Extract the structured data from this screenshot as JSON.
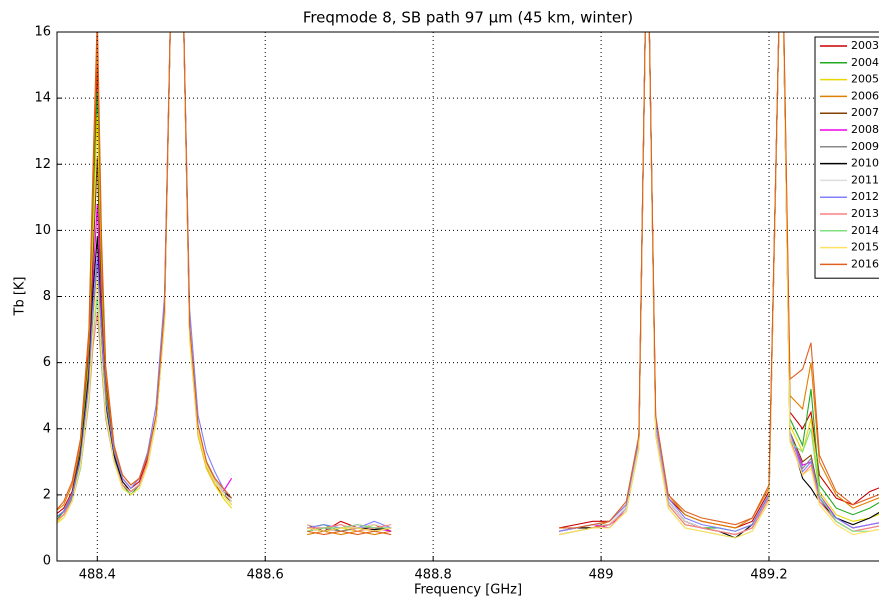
{
  "chart_data": {
    "type": "line",
    "title": "Freqmode 8, SB path 97 μm (45 km, winter)",
    "x_label": "Frequency [GHz]",
    "y_label": "Tb [K]",
    "xlim": [
      488.352,
      489.331
    ],
    "xticks": [
      488.4,
      488.6,
      488.8,
      489.0,
      489.2
    ],
    "ylim": [
      0,
      16
    ],
    "yticks": [
      0,
      2,
      4,
      6,
      8,
      10,
      12,
      14,
      16
    ],
    "grid": true,
    "legend": "upper right",
    "x": [
      488.35,
      488.36,
      488.37,
      488.38,
      488.39,
      488.395,
      488.4,
      488.405,
      488.41,
      488.42,
      488.43,
      488.44,
      488.45,
      488.46,
      488.47,
      488.48,
      488.49,
      488.5,
      488.51,
      488.52,
      488.53,
      488.54,
      488.55,
      488.56,
      488.6,
      488.65,
      488.67,
      488.69,
      488.71,
      488.73,
      488.75,
      488.85,
      488.95,
      488.97,
      488.99,
      489.01,
      489.03,
      489.045,
      489.055,
      489.065,
      489.08,
      489.1,
      489.12,
      489.14,
      489.16,
      489.18,
      489.2,
      489.215,
      489.225,
      489.24,
      489.25,
      489.26,
      489.28,
      489.3,
      489.32,
      489.34
    ],
    "series": [
      {
        "name": "2003",
        "color": "#cc0000",
        "values": [
          1.4,
          1.6,
          2.1,
          3.4,
          6.5,
          11,
          15,
          9,
          5.5,
          3.3,
          2.5,
          2.2,
          2.4,
          3.1,
          4.2,
          7.3,
          20,
          20,
          6.8,
          3.8,
          2.8,
          2.3,
          2.0,
          1.8,
          null,
          1.1,
          0.9,
          1.2,
          1.0,
          1.1,
          0.9,
          null,
          1.0,
          1.1,
          1.2,
          1.2,
          1.7,
          3.6,
          20,
          4.2,
          1.9,
          1.4,
          1.2,
          1.1,
          1.0,
          1.2,
          2.1,
          20,
          4.5,
          4.0,
          4.5,
          2.6,
          1.9,
          1.7,
          2.1,
          2.3
        ]
      },
      {
        "name": "2004",
        "color": "#22aa22",
        "values": [
          1.2,
          1.5,
          2.0,
          3.3,
          6.2,
          10.5,
          14.2,
          8.5,
          5.2,
          3.1,
          2.3,
          2.0,
          2.3,
          3.0,
          4.3,
          7.4,
          20,
          20,
          6.9,
          3.9,
          2.9,
          2.4,
          2.0,
          1.7,
          null,
          1.0,
          1.1,
          0.9,
          1.0,
          1.0,
          0.9,
          null,
          0.9,
          1.0,
          1.1,
          1.1,
          1.6,
          3.5,
          20,
          4.0,
          1.8,
          1.2,
          1.0,
          1.0,
          0.9,
          1.1,
          2.0,
          20,
          4.3,
          3.5,
          5.2,
          2.3,
          1.6,
          1.4,
          1.6,
          1.9
        ]
      },
      {
        "name": "2005",
        "color": "#e6d800",
        "values": [
          1.1,
          1.4,
          1.9,
          3.1,
          6.0,
          10,
          13.5,
          8.2,
          5.0,
          3.0,
          2.2,
          2.0,
          2.2,
          2.9,
          4.2,
          7.2,
          20,
          20,
          6.7,
          3.8,
          2.8,
          2.3,
          1.9,
          1.6,
          null,
          0.9,
          1.0,
          1.0,
          0.9,
          1.1,
          1.0,
          null,
          0.8,
          0.9,
          1.0,
          1.1,
          1.5,
          3.4,
          20,
          3.9,
          1.7,
          1.1,
          1.0,
          0.9,
          0.8,
          1.0,
          1.9,
          20,
          4.1,
          3.3,
          4.3,
          2.1,
          1.4,
          1.2,
          1.3,
          1.5
        ]
      },
      {
        "name": "2006",
        "color": "#e08000",
        "values": [
          1.5,
          1.7,
          2.3,
          3.6,
          6.8,
          11.5,
          15.8,
          9.5,
          5.7,
          3.4,
          2.6,
          2.3,
          2.5,
          3.2,
          4.4,
          7.6,
          20,
          20,
          7.1,
          4.1,
          3.0,
          2.5,
          2.2,
          1.9,
          null,
          0.8,
          0.9,
          0.8,
          0.9,
          0.8,
          0.9,
          null,
          0.9,
          1.0,
          1.0,
          1.2,
          1.7,
          3.7,
          20,
          4.3,
          2.0,
          1.4,
          1.2,
          1.1,
          1.0,
          1.3,
          2.2,
          20,
          5.0,
          4.6,
          6.0,
          3.0,
          2.0,
          1.6,
          1.8,
          2.0
        ]
      },
      {
        "name": "2007",
        "color": "#804000",
        "values": [
          1.3,
          1.5,
          2.0,
          3.2,
          5.8,
          9.2,
          12.2,
          7.8,
          5.0,
          3.1,
          2.3,
          2.1,
          2.3,
          3.0,
          4.2,
          7.4,
          20,
          20,
          6.9,
          3.9,
          2.9,
          2.4,
          2.0,
          1.8,
          null,
          0.9,
          1.0,
          0.9,
          1.0,
          0.9,
          1.0,
          null,
          0.9,
          1.0,
          1.0,
          1.1,
          1.6,
          3.5,
          20,
          4.0,
          1.8,
          1.2,
          1.0,
          0.9,
          0.8,
          1.0,
          1.9,
          20,
          3.9,
          3.0,
          3.2,
          2.0,
          1.3,
          1.0,
          1.1,
          1.2
        ]
      },
      {
        "name": "2008",
        "color": "#ee00ee",
        "values": [
          1.2,
          1.4,
          1.9,
          3.1,
          5.6,
          8.5,
          10.8,
          7.3,
          4.8,
          3.0,
          2.3,
          2.1,
          2.3,
          3.0,
          4.3,
          7.5,
          20,
          20,
          7.0,
          4.0,
          3.0,
          2.5,
          2.1,
          2.5,
          null,
          1.0,
          0.9,
          1.0,
          1.1,
          1.0,
          0.9,
          null,
          0.9,
          1.0,
          1.1,
          1.0,
          1.6,
          3.5,
          20,
          4.0,
          1.8,
          1.2,
          1.0,
          0.9,
          0.8,
          1.0,
          1.9,
          20,
          3.8,
          2.9,
          3.0,
          2.0,
          1.3,
          1.0,
          1.1,
          1.2
        ]
      },
      {
        "name": "2009",
        "color": "#888888",
        "values": [
          1.2,
          1.4,
          1.9,
          3.0,
          5.4,
          7.5,
          9.0,
          6.8,
          4.7,
          3.1,
          2.3,
          2.1,
          2.3,
          3.0,
          4.3,
          7.5,
          20,
          20,
          7.0,
          4.0,
          3.0,
          2.5,
          2.1,
          1.8,
          null,
          1.0,
          1.0,
          0.9,
          1.0,
          1.0,
          1.0,
          null,
          0.8,
          0.9,
          1.0,
          1.1,
          1.6,
          3.4,
          20,
          3.9,
          1.7,
          1.1,
          1.0,
          0.9,
          0.8,
          1.0,
          1.9,
          20,
          3.8,
          2.8,
          3.1,
          1.9,
          1.2,
          0.9,
          1.0,
          1.1
        ]
      },
      {
        "name": "2010",
        "color": "#000000",
        "values": [
          1.3,
          1.5,
          2.0,
          3.2,
          5.6,
          8.2,
          9.8,
          7.0,
          4.8,
          3.2,
          2.4,
          2.1,
          2.3,
          3.0,
          4.3,
          7.5,
          20,
          20,
          7.0,
          4.0,
          3.0,
          2.5,
          2.1,
          1.9,
          null,
          1.0,
          0.9,
          1.0,
          1.0,
          0.95,
          1.0,
          null,
          0.9,
          1.0,
          1.0,
          1.1,
          1.6,
          3.5,
          20,
          4.0,
          1.8,
          1.2,
          1.0,
          0.9,
          0.7,
          1.1,
          2.0,
          20,
          3.8,
          2.5,
          2.2,
          1.8,
          1.3,
          1.1,
          1.3,
          1.6
        ]
      },
      {
        "name": "2011",
        "color": "#dddddd",
        "values": [
          1.2,
          1.4,
          1.8,
          2.9,
          5.0,
          6.8,
          8.0,
          6.2,
          4.5,
          3.0,
          2.3,
          2.1,
          2.3,
          3.0,
          4.3,
          7.5,
          20,
          20,
          7.0,
          4.0,
          3.0,
          2.5,
          2.1,
          1.8,
          null,
          1.1,
          1.0,
          1.1,
          1.0,
          1.1,
          1.0,
          null,
          0.9,
          1.0,
          1.1,
          1.1,
          1.6,
          3.5,
          20,
          4.0,
          1.8,
          1.2,
          1.0,
          0.9,
          0.8,
          1.0,
          1.9,
          20,
          3.8,
          2.6,
          2.8,
          1.8,
          1.2,
          0.9,
          1.0,
          1.1
        ]
      },
      {
        "name": "2012",
        "color": "#8080ff",
        "values": [
          1.3,
          1.5,
          2.0,
          3.1,
          5.4,
          7.8,
          9.2,
          7.0,
          4.9,
          3.3,
          2.5,
          2.2,
          2.5,
          3.3,
          4.7,
          8.0,
          20,
          20,
          7.6,
          4.4,
          3.3,
          2.7,
          2.2,
          1.9,
          null,
          1.0,
          1.1,
          1.0,
          1.0,
          1.2,
          1.0,
          null,
          0.9,
          1.0,
          1.1,
          1.2,
          1.7,
          3.7,
          20,
          4.2,
          1.9,
          1.3,
          1.1,
          1.0,
          0.9,
          1.1,
          2.0,
          20,
          3.9,
          2.7,
          3.0,
          1.9,
          1.3,
          1.0,
          1.1,
          1.2
        ]
      },
      {
        "name": "2013",
        "color": "#ff8080",
        "values": [
          1.2,
          1.4,
          1.8,
          2.8,
          4.8,
          6.5,
          7.5,
          5.9,
          4.3,
          3.0,
          2.3,
          2.1,
          2.3,
          3.0,
          4.2,
          7.4,
          20,
          20,
          6.9,
          3.9,
          2.9,
          2.4,
          2.0,
          1.7,
          null,
          1.0,
          1.0,
          1.1,
          0.9,
          1.0,
          1.1,
          null,
          0.8,
          0.9,
          1.0,
          1.1,
          1.5,
          3.4,
          20,
          3.9,
          1.7,
          1.1,
          1.0,
          0.9,
          0.8,
          1.0,
          1.9,
          20,
          3.7,
          2.6,
          2.9,
          1.8,
          1.2,
          0.9,
          1.0,
          1.1
        ]
      },
      {
        "name": "2014",
        "color": "#80e080",
        "values": [
          1.1,
          1.3,
          1.8,
          2.8,
          4.9,
          6.8,
          8.0,
          6.0,
          4.4,
          3.0,
          2.2,
          2.0,
          2.2,
          2.9,
          4.2,
          7.3,
          20,
          20,
          6.8,
          3.9,
          2.9,
          2.4,
          2.0,
          1.7,
          null,
          0.9,
          1.0,
          1.0,
          1.1,
          1.0,
          1.0,
          null,
          0.8,
          0.9,
          1.0,
          1.0,
          1.5,
          3.4,
          20,
          3.8,
          1.6,
          1.0,
          0.9,
          0.8,
          0.7,
          0.9,
          1.8,
          20,
          3.6,
          3.3,
          4.0,
          2.0,
          1.2,
          0.9,
          0.9,
          1.0
        ]
      },
      {
        "name": "2015",
        "color": "#ffe060",
        "values": [
          1.1,
          1.3,
          1.8,
          2.9,
          5.0,
          7.0,
          8.5,
          6.3,
          4.5,
          3.0,
          2.2,
          2.0,
          2.2,
          2.9,
          4.2,
          7.3,
          20,
          20,
          6.8,
          3.9,
          2.9,
          2.4,
          2.0,
          1.7,
          null,
          1.0,
          0.9,
          1.0,
          1.0,
          0.9,
          1.0,
          null,
          0.8,
          0.9,
          1.0,
          1.0,
          1.5,
          3.4,
          20,
          3.8,
          1.6,
          1.0,
          0.9,
          0.8,
          0.7,
          0.9,
          1.8,
          20,
          3.6,
          2.6,
          2.8,
          1.7,
          1.1,
          0.8,
          0.9,
          1.0
        ]
      },
      {
        "name": "2016",
        "color": "#e06020",
        "values": [
          1.5,
          1.8,
          2.4,
          3.7,
          7.0,
          12,
          16.5,
          9.8,
          5.9,
          3.5,
          2.6,
          2.3,
          2.5,
          3.2,
          4.4,
          7.6,
          20,
          20,
          7.1,
          4.1,
          3.0,
          2.5,
          2.2,
          1.9,
          null,
          0.9,
          0.8,
          0.9,
          0.8,
          0.9,
          0.8,
          null,
          1.0,
          1.0,
          1.1,
          1.2,
          1.8,
          3.8,
          20,
          4.4,
          2.0,
          1.5,
          1.3,
          1.2,
          1.1,
          1.3,
          2.3,
          20,
          5.5,
          5.8,
          6.6,
          3.2,
          2.1,
          1.7,
          1.9,
          2.1
        ]
      }
    ]
  }
}
